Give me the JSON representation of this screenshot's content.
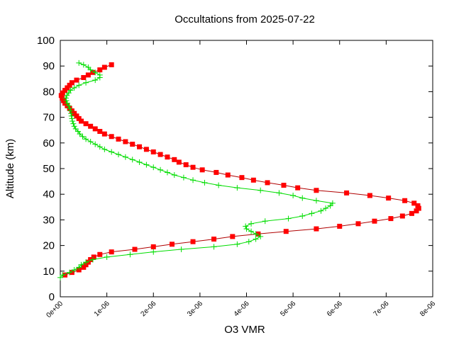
{
  "chart_data": {
    "type": "line",
    "title": "Occultations from 2025-07-22",
    "xlabel": "O3 VMR",
    "ylabel": "Altitude (km)",
    "xlim": [
      0,
      8e-06
    ],
    "ylim": [
      0,
      100
    ],
    "grid": false,
    "legend": "none",
    "x_ticks": [
      "0e+00",
      "1e-06",
      "2e-06",
      "3e-06",
      "4e-06",
      "5e-06",
      "6e-06",
      "7e-06",
      "8e-06"
    ],
    "x_tick_values": [
      0,
      1e-06,
      2e-06,
      3e-06,
      4e-06,
      5e-06,
      6e-06,
      7e-06,
      8e-06
    ],
    "y_ticks": [
      "0",
      "10",
      "20",
      "30",
      "40",
      "50",
      "60",
      "70",
      "80",
      "90",
      "100"
    ],
    "y_tick_values": [
      0,
      10,
      20,
      30,
      40,
      50,
      60,
      70,
      80,
      90,
      100
    ],
    "series": [
      {
        "marker": "square",
        "color": "#ff0000",
        "line_color": "#b00000",
        "points": [
          [
            1e-07,
            8.5
          ],
          [
            2.5e-07,
            9.5
          ],
          [
            4e-07,
            10.5
          ],
          [
            5e-07,
            11.5
          ],
          [
            5.5e-07,
            12.5
          ],
          [
            6e-07,
            13.5
          ],
          [
            6.5e-07,
            14.5
          ],
          [
            7.2e-07,
            15.5
          ],
          [
            8.5e-07,
            16.5
          ],
          [
            1.1e-06,
            17.5
          ],
          [
            1.6e-06,
            18.5
          ],
          [
            2e-06,
            19.5
          ],
          [
            2.4e-06,
            20.5
          ],
          [
            2.85e-06,
            21.5
          ],
          [
            3.3e-06,
            22.5
          ],
          [
            3.7e-06,
            23.5
          ],
          [
            4.25e-06,
            24.5
          ],
          [
            4.85e-06,
            25.5
          ],
          [
            5.5e-06,
            26.5
          ],
          [
            6e-06,
            27.5
          ],
          [
            6.4e-06,
            28.5
          ],
          [
            6.75e-06,
            29.5
          ],
          [
            7.1e-06,
            30.5
          ],
          [
            7.35e-06,
            31.5
          ],
          [
            7.55e-06,
            32.5
          ],
          [
            7.65e-06,
            33.5
          ],
          [
            7.7e-06,
            34.5
          ],
          [
            7.68e-06,
            35.5
          ],
          [
            7.6e-06,
            36.5
          ],
          [
            7.4e-06,
            37.5
          ],
          [
            7.05e-06,
            38.5
          ],
          [
            6.65e-06,
            39.5
          ],
          [
            6.15e-06,
            40.5
          ],
          [
            5.5e-06,
            41.5
          ],
          [
            5.1e-06,
            42.5
          ],
          [
            4.8e-06,
            43.5
          ],
          [
            4.45e-06,
            44.5
          ],
          [
            4.15e-06,
            45.5
          ],
          [
            3.9e-06,
            46.5
          ],
          [
            3.6e-06,
            47.5
          ],
          [
            3.35e-06,
            48.5
          ],
          [
            3.05e-06,
            49.5
          ],
          [
            2.85e-06,
            50.5
          ],
          [
            2.7e-06,
            51.5
          ],
          [
            2.55e-06,
            52.5
          ],
          [
            2.45e-06,
            53.5
          ],
          [
            2.3e-06,
            54.5
          ],
          [
            2.15e-06,
            55.5
          ],
          [
            2e-06,
            56.5
          ],
          [
            1.85e-06,
            57.5
          ],
          [
            1.7e-06,
            58.5
          ],
          [
            1.55e-06,
            59.5
          ],
          [
            1.4e-06,
            60.5
          ],
          [
            1.25e-06,
            61.5
          ],
          [
            1.1e-06,
            62.5
          ],
          [
            9.5e-07,
            63.5
          ],
          [
            8.5e-07,
            64.5
          ],
          [
            7.5e-07,
            65.5
          ],
          [
            6.5e-07,
            66.5
          ],
          [
            5.5e-07,
            67.5
          ],
          [
            4.5e-07,
            68.5
          ],
          [
            4e-07,
            69.5
          ],
          [
            3.5e-07,
            70.5
          ],
          [
            3e-07,
            71.5
          ],
          [
            2.5e-07,
            72.5
          ],
          [
            2e-07,
            73.5
          ],
          [
            1.5e-07,
            74.5
          ],
          [
            1e-07,
            75.5
          ],
          [
            7e-08,
            76.5
          ],
          [
            4e-08,
            77.5
          ],
          [
            2e-08,
            78.5
          ],
          [
            5e-08,
            79.5
          ],
          [
            1e-07,
            80.5
          ],
          [
            1.5e-07,
            81.5
          ],
          [
            2e-07,
            82.5
          ],
          [
            2.5e-07,
            83.5
          ],
          [
            3.5e-07,
            84.5
          ],
          [
            5e-07,
            85.5
          ],
          [
            6e-07,
            86.5
          ],
          [
            7e-07,
            87.5
          ],
          [
            8.5e-07,
            88.5
          ],
          [
            9.5e-07,
            89.5
          ],
          [
            1.1e-06,
            90.5
          ]
        ]
      },
      {
        "marker": "plus",
        "color": "#00dd00",
        "line_color": "#00dd00",
        "points": [
          [
            0.0,
            7.5
          ],
          [
            5e-08,
            8.5
          ],
          [
            2e-07,
            9.5
          ],
          [
            3e-07,
            10.5
          ],
          [
            4e-07,
            11.5
          ],
          [
            4.5e-07,
            12.5
          ],
          [
            5.5e-07,
            13.5
          ],
          [
            7e-07,
            14.5
          ],
          [
            1e-06,
            15.5
          ],
          [
            1.5e-06,
            16.5
          ],
          [
            2e-06,
            17.5
          ],
          [
            2.6e-06,
            18.5
          ],
          [
            3.3e-06,
            19.5
          ],
          [
            3.8e-06,
            20.5
          ],
          [
            4.05e-06,
            21.5
          ],
          [
            4.2e-06,
            22.5
          ],
          [
            4.3e-06,
            23.5
          ],
          [
            4.2e-06,
            24.5
          ],
          [
            4.1e-06,
            25.5
          ],
          [
            4e-06,
            26.5
          ],
          [
            3.98e-06,
            27.5
          ],
          [
            4.1e-06,
            28.5
          ],
          [
            4.4e-06,
            29.5
          ],
          [
            4.9e-06,
            30.5
          ],
          [
            5.2e-06,
            31.5
          ],
          [
            5.4e-06,
            32.5
          ],
          [
            5.6e-06,
            33.5
          ],
          [
            5.7e-06,
            34.5
          ],
          [
            5.8e-06,
            35.5
          ],
          [
            5.85e-06,
            36.5
          ],
          [
            5.5e-06,
            37.5
          ],
          [
            5.2e-06,
            38.5
          ],
          [
            5e-06,
            39.5
          ],
          [
            4.7e-06,
            40.5
          ],
          [
            4.3e-06,
            41.5
          ],
          [
            3.8e-06,
            42.5
          ],
          [
            3.4e-06,
            43.5
          ],
          [
            3.1e-06,
            44.5
          ],
          [
            2.85e-06,
            45.5
          ],
          [
            2.65e-06,
            46.5
          ],
          [
            2.45e-06,
            47.5
          ],
          [
            2.3e-06,
            48.5
          ],
          [
            2.15e-06,
            49.5
          ],
          [
            2e-06,
            50.5
          ],
          [
            1.85e-06,
            51.5
          ],
          [
            1.7e-06,
            52.5
          ],
          [
            1.55e-06,
            53.5
          ],
          [
            1.4e-06,
            54.5
          ],
          [
            1.25e-06,
            55.5
          ],
          [
            1.1e-06,
            56.5
          ],
          [
            9.5e-07,
            57.5
          ],
          [
            8.5e-07,
            58.5
          ],
          [
            7.5e-07,
            59.5
          ],
          [
            6.5e-07,
            60.5
          ],
          [
            5.5e-07,
            61.5
          ],
          [
            4.8e-07,
            62.5
          ],
          [
            4.2e-07,
            63.5
          ],
          [
            3.8e-07,
            64.5
          ],
          [
            3.3e-07,
            65.5
          ],
          [
            3e-07,
            66.5
          ],
          [
            2.8e-07,
            67.5
          ],
          [
            2.6e-07,
            68.5
          ],
          [
            2.5e-07,
            69.5
          ],
          [
            2.4e-07,
            70.5
          ],
          [
            2.3e-07,
            71.5
          ],
          [
            2.2e-07,
            72.5
          ],
          [
            2e-07,
            73.5
          ],
          [
            1.8e-07,
            74.5
          ],
          [
            1.5e-07,
            75.5
          ],
          [
            1.3e-07,
            76.5
          ],
          [
            1.2e-07,
            77.5
          ],
          [
            1.4e-07,
            78.5
          ],
          [
            1.8e-07,
            79.5
          ],
          [
            2.2e-07,
            80.5
          ],
          [
            3e-07,
            81.5
          ],
          [
            4e-07,
            82.5
          ],
          [
            5.5e-07,
            83.5
          ],
          [
            7.5e-07,
            84.5
          ],
          [
            8.5e-07,
            85.5
          ],
          [
            8.5e-07,
            86.5
          ],
          [
            7.5e-07,
            87.5
          ],
          [
            6.5e-07,
            88.5
          ],
          [
            6e-07,
            89.5
          ],
          [
            5e-07,
            90.5
          ],
          [
            4e-07,
            91.2
          ]
        ]
      }
    ]
  }
}
